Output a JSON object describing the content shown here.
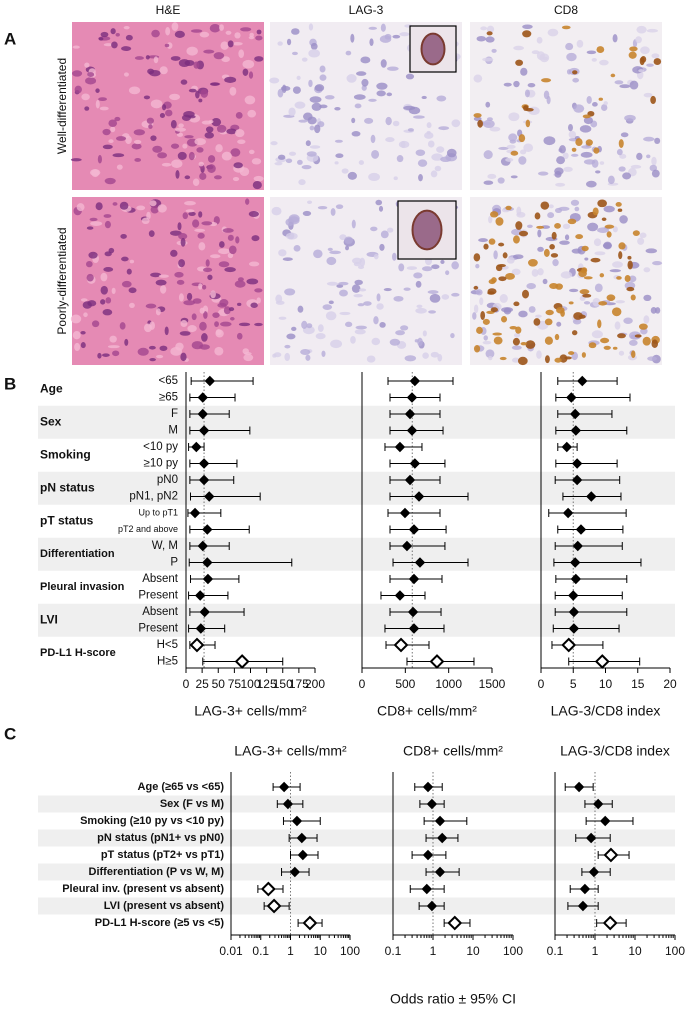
{
  "panel_labels": [
    "A",
    "B",
    "C"
  ],
  "panel_a": {
    "columns": [
      "H&E",
      "LAG-3",
      "CD8"
    ],
    "rows": [
      "Well-differentiated",
      "Poorly-differentiated"
    ]
  },
  "panel_b_rows": [
    {
      "name": "Age",
      "categories": [
        "<65",
        "≥65"
      ]
    },
    {
      "name": "Sex",
      "categories": [
        "F",
        "M"
      ]
    },
    {
      "name": "Smoking",
      "categories": [
        "<10 py",
        "≥10 py"
      ]
    },
    {
      "name": "pN status",
      "categories": [
        "pN0",
        "pN1, pN2"
      ]
    },
    {
      "name": "pT status",
      "categories": [
        "Up to pT1",
        "pT2 and above"
      ]
    },
    {
      "name": "Differentiation",
      "categories": [
        "W, M",
        "P"
      ]
    },
    {
      "name": "Pleural invasion",
      "categories": [
        "Absent",
        "Present"
      ]
    },
    {
      "name": "LVI",
      "categories": [
        "Absent",
        "Present"
      ]
    },
    {
      "name": "PD-L1 H-score",
      "categories": [
        "H<5",
        "H≥5"
      ]
    }
  ],
  "panel_c_rows": [
    "Age (≥65 vs <65)",
    "Sex (F vs M)",
    "Smoking (≥10 py vs <10 py)",
    "pN status (pN1+ vs pN0)",
    "pT status (pT2+ vs pT1)",
    "Differentiation (P vs W, M)",
    "Pleural inv. (present vs absent)",
    "LVI (present vs absent)",
    "PD-L1 H-score (≥5 vs <5)"
  ],
  "panel_c_xlabel": "Odds ratio ± 95% CI",
  "chart_data": [
    {
      "type": "forest",
      "xlabel": "LAG-3+ cells/mm²",
      "xlim": [
        0,
        200
      ],
      "xticks": [
        0,
        25,
        50,
        75,
        100,
        125,
        150,
        175,
        200
      ],
      "refline": 28,
      "values": [
        37,
        26,
        26,
        28,
        16,
        28,
        28,
        36,
        14,
        33,
        26,
        33,
        34,
        22,
        29,
        23,
        17,
        87
      ],
      "lower": [
        8,
        6,
        6,
        6,
        4,
        6,
        6,
        7,
        3,
        6,
        6,
        5,
        7,
        4,
        6,
        4,
        6,
        26
      ],
      "upper": [
        104,
        76,
        67,
        99,
        28,
        79,
        74,
        115,
        54,
        98,
        67,
        164,
        82,
        65,
        90,
        60,
        45,
        150
      ],
      "markers": [
        "filled",
        "filled",
        "filled",
        "filled",
        "filled",
        "filled",
        "filled",
        "filled",
        "filled",
        "filled",
        "filled",
        "filled",
        "filled",
        "filled",
        "filled",
        "filled",
        "open",
        "open"
      ]
    },
    {
      "type": "forest",
      "xlabel": "CD8+ cells/mm²",
      "xlim": [
        0,
        1500
      ],
      "xticks": [
        0,
        500,
        1000,
        1500
      ],
      "refline": 580,
      "values": [
        610,
        577,
        554,
        577,
        438,
        610,
        554,
        658,
        496,
        600,
        519,
        669,
        600,
        438,
        589,
        600,
        450,
        865
      ],
      "lower": [
        300,
        323,
        323,
        323,
        265,
        323,
        323,
        323,
        300,
        323,
        323,
        358,
        323,
        219,
        323,
        265,
        277,
        519
      ],
      "upper": [
        1050,
        900,
        900,
        935,
        692,
        957,
        900,
        1223,
        900,
        970,
        957,
        1223,
        923,
        727,
        912,
        946,
        773,
        1292
      ],
      "markers": [
        "filled",
        "filled",
        "filled",
        "filled",
        "filled",
        "filled",
        "filled",
        "filled",
        "filled",
        "filled",
        "filled",
        "filled",
        "filled",
        "filled",
        "filled",
        "filled",
        "open",
        "open"
      ]
    },
    {
      "type": "forest",
      "xlabel": "LAG-3/CD8 index",
      "xlim": [
        0,
        20
      ],
      "xticks": [
        0,
        5,
        10,
        15,
        20
      ],
      "refline": 5,
      "values": [
        6.4,
        4.7,
        5.3,
        5.4,
        4.0,
        5.6,
        5.6,
        7.8,
        4.2,
        6.2,
        5.7,
        5.3,
        5.4,
        5.0,
        5.1,
        5.1,
        4.3,
        9.5
      ],
      "lower": [
        2.6,
        2.3,
        2.6,
        2.3,
        2.6,
        2.3,
        2.2,
        3.4,
        1.2,
        2.6,
        2.2,
        2.0,
        2.3,
        2.2,
        2.2,
        1.9,
        1.7,
        4.3
      ],
      "upper": [
        11.8,
        13.8,
        11.0,
        13.3,
        5.6,
        11.8,
        12.2,
        12.4,
        13.2,
        12.7,
        12.6,
        15.5,
        13.3,
        12.6,
        13.3,
        12.1,
        9.6,
        15.3
      ],
      "markers": [
        "filled",
        "filled",
        "filled",
        "filled",
        "filled",
        "filled",
        "filled",
        "filled",
        "filled",
        "filled",
        "filled",
        "filled",
        "filled",
        "filled",
        "filled",
        "filled",
        "open",
        "open"
      ]
    },
    {
      "type": "forest",
      "title": "LAG-3+ cells/mm²",
      "xscale": "log",
      "xlim": [
        0.01,
        100
      ],
      "xticks": [
        0.01,
        0.1,
        1,
        10,
        100
      ],
      "refline": 1,
      "values": [
        0.61,
        0.82,
        1.65,
        2.4,
        2.6,
        1.4,
        0.18,
        0.28,
        4.5
      ],
      "lower": [
        0.26,
        0.36,
        0.58,
        0.9,
        1.0,
        0.5,
        0.08,
        0.13,
        1.8
      ],
      "upper": [
        2.1,
        2.6,
        10,
        7.8,
        8.4,
        4.2,
        0.56,
        0.9,
        11.5
      ],
      "markers": [
        "filled",
        "filled",
        "filled",
        "filled",
        "filled",
        "filled",
        "open",
        "open",
        "open"
      ]
    },
    {
      "type": "forest",
      "title": "CD8+ cells/mm²",
      "xscale": "log",
      "xlim": [
        0.1,
        100
      ],
      "xticks": [
        0.1,
        1,
        10,
        100
      ],
      "refline": 1,
      "values": [
        0.75,
        0.94,
        1.5,
        1.7,
        0.75,
        1.5,
        0.7,
        0.94,
        3.5
      ],
      "lower": [
        0.35,
        0.47,
        0.6,
        0.67,
        0.3,
        0.67,
        0.27,
        0.45,
        1.9
      ],
      "upper": [
        1.7,
        1.9,
        7,
        4.2,
        2.1,
        4.5,
        1.9,
        1.9,
        8.4
      ],
      "markers": [
        "filled",
        "filled",
        "filled",
        "filled",
        "filled",
        "filled",
        "filled",
        "filled",
        "open"
      ]
    },
    {
      "type": "forest",
      "title": "LAG-3/CD8 index",
      "xscale": "log",
      "xlim": [
        0.1,
        100
      ],
      "xticks": [
        0.1,
        1,
        10,
        100
      ],
      "refline": 1,
      "values": [
        0.4,
        1.2,
        1.8,
        0.8,
        2.5,
        0.94,
        0.56,
        0.5,
        2.4
      ],
      "lower": [
        0.18,
        0.56,
        0.6,
        0.33,
        1.2,
        0.47,
        0.24,
        0.21,
        1.1
      ],
      "upper": [
        0.9,
        2.7,
        8.9,
        2.4,
        7.1,
        2.4,
        1.2,
        1.2,
        6
      ],
      "markers": [
        "filled",
        "filled",
        "filled",
        "filled",
        "open",
        "filled",
        "filled",
        "filled",
        "open"
      ]
    }
  ]
}
